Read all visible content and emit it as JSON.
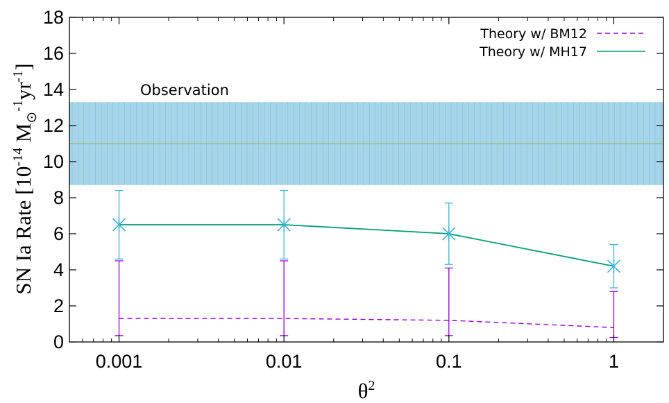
{
  "chart_data": {
    "type": "line",
    "x": [
      0.001,
      0.01,
      0.1,
      1
    ],
    "x_scale": "log",
    "xlim": [
      0.0005,
      2
    ],
    "ylim": [
      0,
      18
    ],
    "x_ticks": [
      0.001,
      0.01,
      0.1,
      1
    ],
    "x_tick_labels": [
      "0.001",
      "0.01",
      "0.1",
      "1"
    ],
    "y_ticks": [
      0,
      2,
      4,
      6,
      8,
      10,
      12,
      14,
      16,
      18
    ],
    "y_tick_labels": [
      "0",
      "2",
      "4",
      "6",
      "8",
      "10",
      "12",
      "14",
      "16",
      "18"
    ],
    "xlabel_base": "θ",
    "xlabel_sup": "2",
    "ylabel": {
      "prefix": "SN Ia Rate [10",
      "exp1": "-14",
      "mid": " M",
      "sub": "⊙",
      "exp2": "-1",
      "mid2": "yr",
      "exp3": "-1",
      "suffix": "]"
    },
    "series": [
      {
        "name": "Theory w/ BM12",
        "values": [
          1.3,
          1.3,
          1.2,
          0.8
        ],
        "err_low": [
          0.35,
          0.35,
          0.35,
          0.25
        ],
        "err_high": [
          4.5,
          4.5,
          4.1,
          2.8
        ],
        "color": "#9400d3",
        "style": "dashed"
      },
      {
        "name": "Theory w/ MH17",
        "values": [
          6.5,
          6.5,
          6.0,
          4.2
        ],
        "err_low": [
          4.6,
          4.6,
          4.3,
          3.0
        ],
        "err_high": [
          8.4,
          8.4,
          7.7,
          5.4
        ],
        "color": "#009e73",
        "marker_color": "#3fb4d8",
        "style": "solid"
      }
    ],
    "observation": {
      "label": "Observation",
      "value": 11.0,
      "low": 8.7,
      "high": 13.3,
      "band_color": "#a6d5ea",
      "line_color": "#a0b040"
    },
    "legend_position": "top-right",
    "grid": false
  }
}
